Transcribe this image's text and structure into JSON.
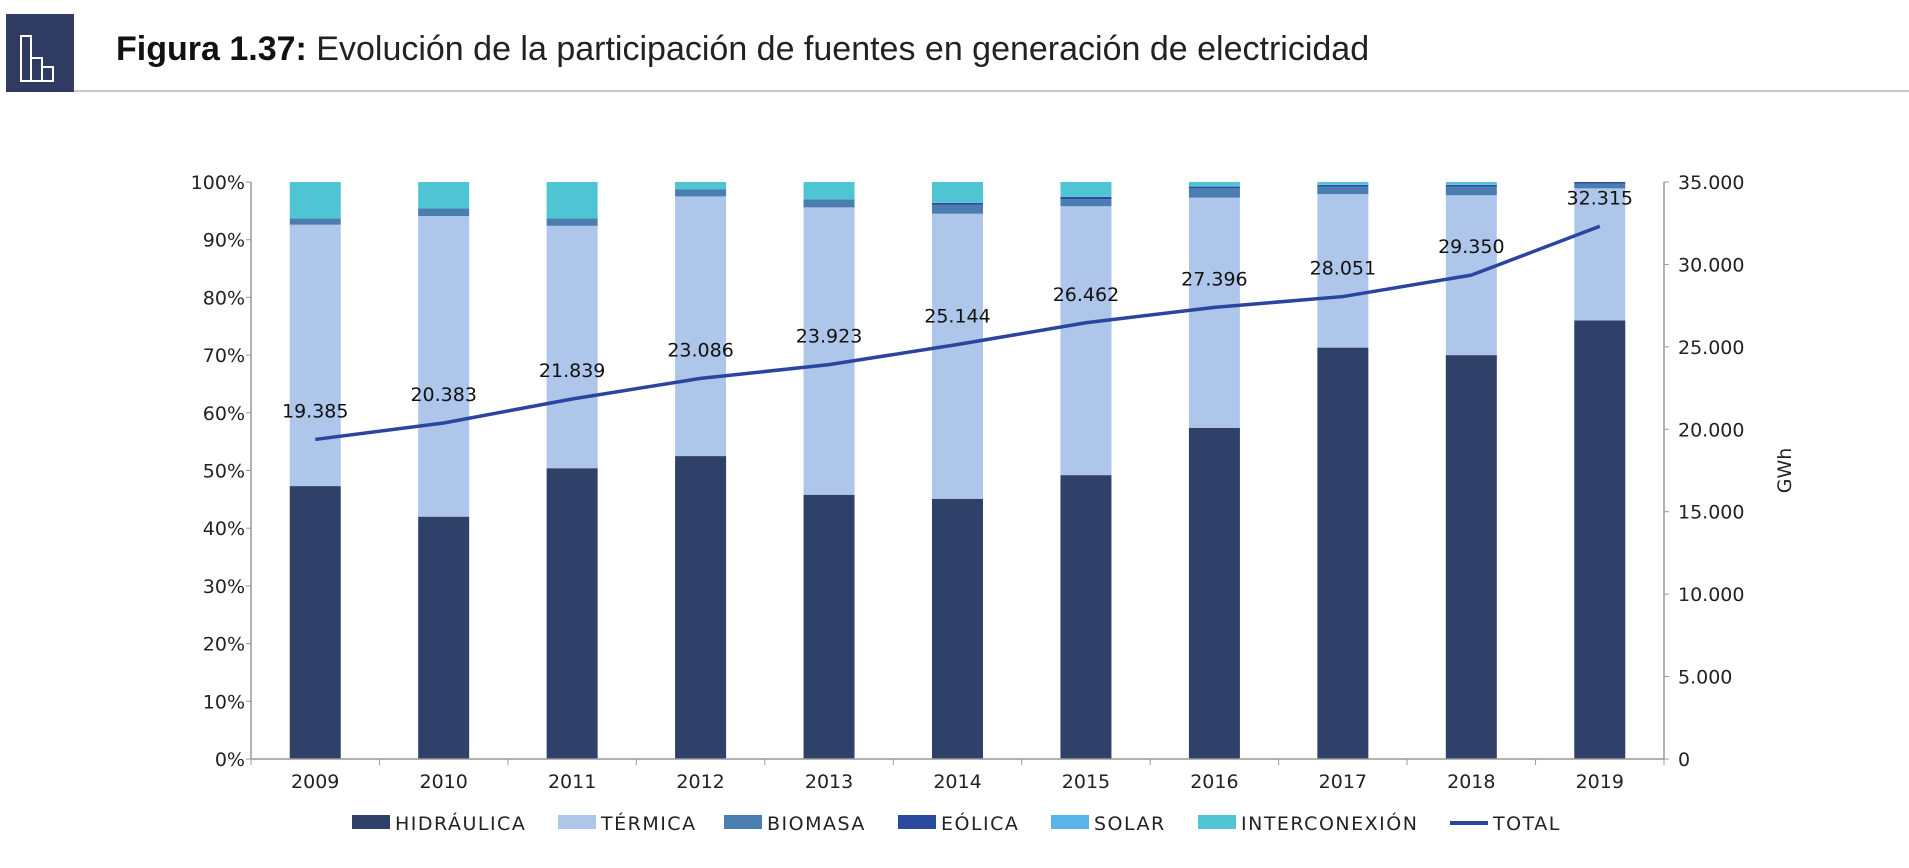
{
  "header": {
    "figure_label": "Figura 1.37:",
    "title": "Evolución de la participación de fuentes en generación de electricidad",
    "icon": "bar-chart-icon"
  },
  "chart_data": {
    "type": "bar",
    "stacked": true,
    "percent_stacked": true,
    "categories": [
      "2009",
      "2010",
      "2011",
      "2012",
      "2013",
      "2014",
      "2015",
      "2016",
      "2017",
      "2018",
      "2019"
    ],
    "y_left": {
      "ylim": [
        0,
        100
      ],
      "ticks": [
        "0%",
        "10%",
        "20%",
        "30%",
        "40%",
        "50%",
        "60%",
        "70%",
        "80%",
        "90%",
        "100%"
      ]
    },
    "y_right": {
      "ylabel": "GWh",
      "ylim": [
        0,
        35000
      ],
      "ticks": [
        "0",
        "5.000",
        "10.000",
        "15.000",
        "20.000",
        "25.000",
        "30.000",
        "35.000"
      ]
    },
    "grid": false,
    "legend_position": "bottom",
    "series": [
      {
        "name": "HIDRÁULICA",
        "color": "#2f4069",
        "values": [
          47.3,
          42.0,
          50.4,
          52.5,
          45.8,
          45.1,
          49.2,
          57.4,
          71.3,
          70.0,
          76.0
        ]
      },
      {
        "name": "TÉRMICA",
        "color": "#aec6ea",
        "values": [
          45.3,
          52.1,
          42.0,
          45.0,
          49.8,
          49.4,
          46.6,
          39.9,
          26.6,
          27.7,
          22.9
        ]
      },
      {
        "name": "BIOMASA",
        "color": "#4a7db0",
        "values": [
          1.1,
          1.3,
          1.3,
          1.2,
          1.4,
          1.6,
          1.2,
          1.6,
          1.3,
          1.5,
          0.8
        ]
      },
      {
        "name": "EÓLICA",
        "color": "#2a4aa0",
        "values": [
          0,
          0,
          0,
          0,
          0,
          0.3,
          0.4,
          0.3,
          0.3,
          0.3,
          0.3
        ]
      },
      {
        "name": "SOLAR",
        "color": "#5ab4e8",
        "values": [
          0,
          0,
          0,
          0,
          0,
          0.1,
          0.1,
          0.1,
          0.1,
          0.1,
          0
        ]
      },
      {
        "name": "INTERCONEXIÓN",
        "color": "#4fc4d2",
        "values": [
          6.3,
          4.6,
          6.3,
          1.3,
          3.0,
          3.5,
          2.5,
          0.7,
          0.4,
          0.4,
          0
        ]
      }
    ],
    "line_series": {
      "name": "TOTAL",
      "color": "#2a45a0",
      "axis": "right",
      "values": [
        19385,
        20383,
        21839,
        23086,
        23923,
        25144,
        26462,
        27396,
        28051,
        29350,
        32315
      ],
      "labels": [
        "19.385",
        "20.383",
        "21.839",
        "23.086",
        "23.923",
        "25.144",
        "26.462",
        "27.396",
        "28.051",
        "29.350",
        "32.315"
      ]
    }
  }
}
